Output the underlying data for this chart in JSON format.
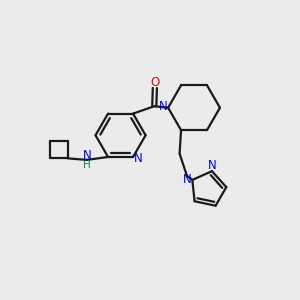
{
  "bg_color": "#ebebeb",
  "bond_color": "#1a1a1a",
  "bond_width": 1.6,
  "N_color": "#0000ee",
  "O_color": "#ee0000",
  "H_color": "#008080",
  "font_size": 8.5,
  "xlim": [
    0,
    10
  ],
  "ylim": [
    0,
    10
  ]
}
